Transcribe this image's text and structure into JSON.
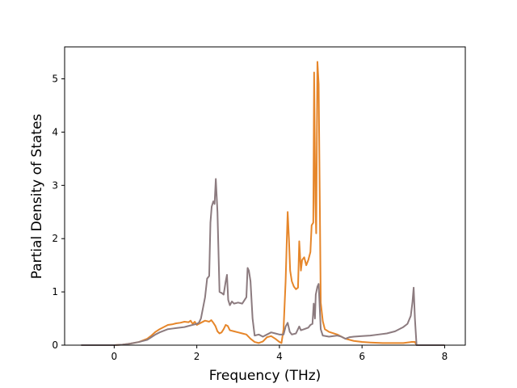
{
  "chart_data": {
    "type": "line",
    "title": "",
    "xlabel": "Frequency (THz)",
    "ylabel": "Partial Density of States",
    "xlim": [
      -1.2,
      8.5
    ],
    "ylim": [
      0,
      5.6
    ],
    "xticks": [
      0,
      2,
      4,
      6,
      8
    ],
    "yticks": [
      0,
      1,
      2,
      3,
      4,
      5
    ],
    "grid": false,
    "legend": "none",
    "series": [
      {
        "color": "#e6862a",
        "points": [
          [
            -0.8,
            0
          ],
          [
            0,
            0
          ],
          [
            0.2,
            0.01
          ],
          [
            0.4,
            0.03
          ],
          [
            0.6,
            0.06
          ],
          [
            0.8,
            0.12
          ],
          [
            0.9,
            0.18
          ],
          [
            1.0,
            0.25
          ],
          [
            1.1,
            0.3
          ],
          [
            1.2,
            0.34
          ],
          [
            1.3,
            0.38
          ],
          [
            1.4,
            0.39
          ],
          [
            1.5,
            0.41
          ],
          [
            1.6,
            0.42
          ],
          [
            1.7,
            0.44
          ],
          [
            1.8,
            0.43
          ],
          [
            1.85,
            0.46
          ],
          [
            1.9,
            0.4
          ],
          [
            1.95,
            0.44
          ],
          [
            2.0,
            0.38
          ],
          [
            2.1,
            0.42
          ],
          [
            2.2,
            0.46
          ],
          [
            2.3,
            0.44
          ],
          [
            2.35,
            0.47
          ],
          [
            2.4,
            0.42
          ],
          [
            2.45,
            0.36
          ],
          [
            2.5,
            0.26
          ],
          [
            2.55,
            0.22
          ],
          [
            2.6,
            0.24
          ],
          [
            2.65,
            0.3
          ],
          [
            2.7,
            0.38
          ],
          [
            2.75,
            0.36
          ],
          [
            2.8,
            0.28
          ],
          [
            2.9,
            0.26
          ],
          [
            3.0,
            0.24
          ],
          [
            3.1,
            0.22
          ],
          [
            3.2,
            0.2
          ],
          [
            3.3,
            0.12
          ],
          [
            3.4,
            0.06
          ],
          [
            3.5,
            0.04
          ],
          [
            3.6,
            0.07
          ],
          [
            3.7,
            0.15
          ],
          [
            3.8,
            0.17
          ],
          [
            3.9,
            0.12
          ],
          [
            4.0,
            0.06
          ],
          [
            4.05,
            0.04
          ],
          [
            4.1,
            0.3
          ],
          [
            4.15,
            1.2
          ],
          [
            4.18,
            2.0
          ],
          [
            4.2,
            2.5
          ],
          [
            4.23,
            2.0
          ],
          [
            4.26,
            1.4
          ],
          [
            4.3,
            1.2
          ],
          [
            4.35,
            1.1
          ],
          [
            4.4,
            1.05
          ],
          [
            4.45,
            1.08
          ],
          [
            4.48,
            1.95
          ],
          [
            4.52,
            1.4
          ],
          [
            4.55,
            1.6
          ],
          [
            4.6,
            1.65
          ],
          [
            4.65,
            1.5
          ],
          [
            4.7,
            1.6
          ],
          [
            4.75,
            1.75
          ],
          [
            4.78,
            2.25
          ],
          [
            4.82,
            2.3
          ],
          [
            4.84,
            5.12
          ],
          [
            4.87,
            2.7
          ],
          [
            4.89,
            2.1
          ],
          [
            4.92,
            5.32
          ],
          [
            4.95,
            4.9
          ],
          [
            4.98,
            2.5
          ],
          [
            5.0,
            0.8
          ],
          [
            5.05,
            0.45
          ],
          [
            5.1,
            0.3
          ],
          [
            5.2,
            0.25
          ],
          [
            5.4,
            0.2
          ],
          [
            5.6,
            0.12
          ],
          [
            5.8,
            0.08
          ],
          [
            6.0,
            0.06
          ],
          [
            6.2,
            0.05
          ],
          [
            6.5,
            0.04
          ],
          [
            6.8,
            0.04
          ],
          [
            7.0,
            0.04
          ],
          [
            7.2,
            0.06
          ],
          [
            7.28,
            0.06
          ],
          [
            7.32,
            0.0
          ],
          [
            8.0,
            0.0
          ]
        ]
      },
      {
        "color": "#8c7b7f",
        "points": [
          [
            -0.8,
            0
          ],
          [
            0,
            0
          ],
          [
            0.2,
            0.01
          ],
          [
            0.4,
            0.03
          ],
          [
            0.6,
            0.06
          ],
          [
            0.8,
            0.1
          ],
          [
            0.9,
            0.15
          ],
          [
            1.0,
            0.2
          ],
          [
            1.1,
            0.24
          ],
          [
            1.2,
            0.27
          ],
          [
            1.3,
            0.3
          ],
          [
            1.4,
            0.31
          ],
          [
            1.5,
            0.32
          ],
          [
            1.6,
            0.33
          ],
          [
            1.7,
            0.34
          ],
          [
            1.8,
            0.36
          ],
          [
            1.9,
            0.38
          ],
          [
            2.0,
            0.4
          ],
          [
            2.05,
            0.42
          ],
          [
            2.1,
            0.5
          ],
          [
            2.15,
            0.7
          ],
          [
            2.2,
            0.9
          ],
          [
            2.25,
            1.25
          ],
          [
            2.3,
            1.3
          ],
          [
            2.33,
            2.3
          ],
          [
            2.36,
            2.6
          ],
          [
            2.4,
            2.7
          ],
          [
            2.43,
            2.65
          ],
          [
            2.46,
            3.12
          ],
          [
            2.5,
            2.5
          ],
          [
            2.55,
            1.0
          ],
          [
            2.6,
            0.98
          ],
          [
            2.65,
            0.95
          ],
          [
            2.7,
            1.2
          ],
          [
            2.73,
            1.32
          ],
          [
            2.76,
            0.85
          ],
          [
            2.8,
            0.75
          ],
          [
            2.85,
            0.82
          ],
          [
            2.9,
            0.78
          ],
          [
            3.0,
            0.8
          ],
          [
            3.1,
            0.78
          ],
          [
            3.2,
            0.9
          ],
          [
            3.23,
            1.45
          ],
          [
            3.26,
            1.4
          ],
          [
            3.3,
            1.2
          ],
          [
            3.35,
            0.5
          ],
          [
            3.4,
            0.18
          ],
          [
            3.5,
            0.2
          ],
          [
            3.6,
            0.16
          ],
          [
            3.7,
            0.2
          ],
          [
            3.8,
            0.24
          ],
          [
            3.9,
            0.22
          ],
          [
            4.0,
            0.2
          ],
          [
            4.1,
            0.2
          ],
          [
            4.15,
            0.35
          ],
          [
            4.2,
            0.42
          ],
          [
            4.25,
            0.25
          ],
          [
            4.3,
            0.2
          ],
          [
            4.4,
            0.22
          ],
          [
            4.48,
            0.35
          ],
          [
            4.52,
            0.28
          ],
          [
            4.6,
            0.3
          ],
          [
            4.7,
            0.33
          ],
          [
            4.75,
            0.38
          ],
          [
            4.8,
            0.4
          ],
          [
            4.83,
            0.78
          ],
          [
            4.86,
            0.5
          ],
          [
            4.88,
            0.95
          ],
          [
            4.92,
            1.1
          ],
          [
            4.95,
            1.15
          ],
          [
            5.0,
            0.3
          ],
          [
            5.05,
            0.18
          ],
          [
            5.2,
            0.16
          ],
          [
            5.4,
            0.18
          ],
          [
            5.5,
            0.16
          ],
          [
            5.6,
            0.12
          ],
          [
            5.7,
            0.15
          ],
          [
            5.8,
            0.16
          ],
          [
            6.0,
            0.17
          ],
          [
            6.2,
            0.18
          ],
          [
            6.4,
            0.2
          ],
          [
            6.6,
            0.22
          ],
          [
            6.8,
            0.26
          ],
          [
            6.9,
            0.3
          ],
          [
            7.0,
            0.34
          ],
          [
            7.1,
            0.4
          ],
          [
            7.18,
            0.55
          ],
          [
            7.22,
            0.8
          ],
          [
            7.25,
            1.08
          ],
          [
            7.28,
            0.5
          ],
          [
            7.32,
            0.0
          ],
          [
            8.0,
            0.0
          ]
        ]
      }
    ]
  }
}
